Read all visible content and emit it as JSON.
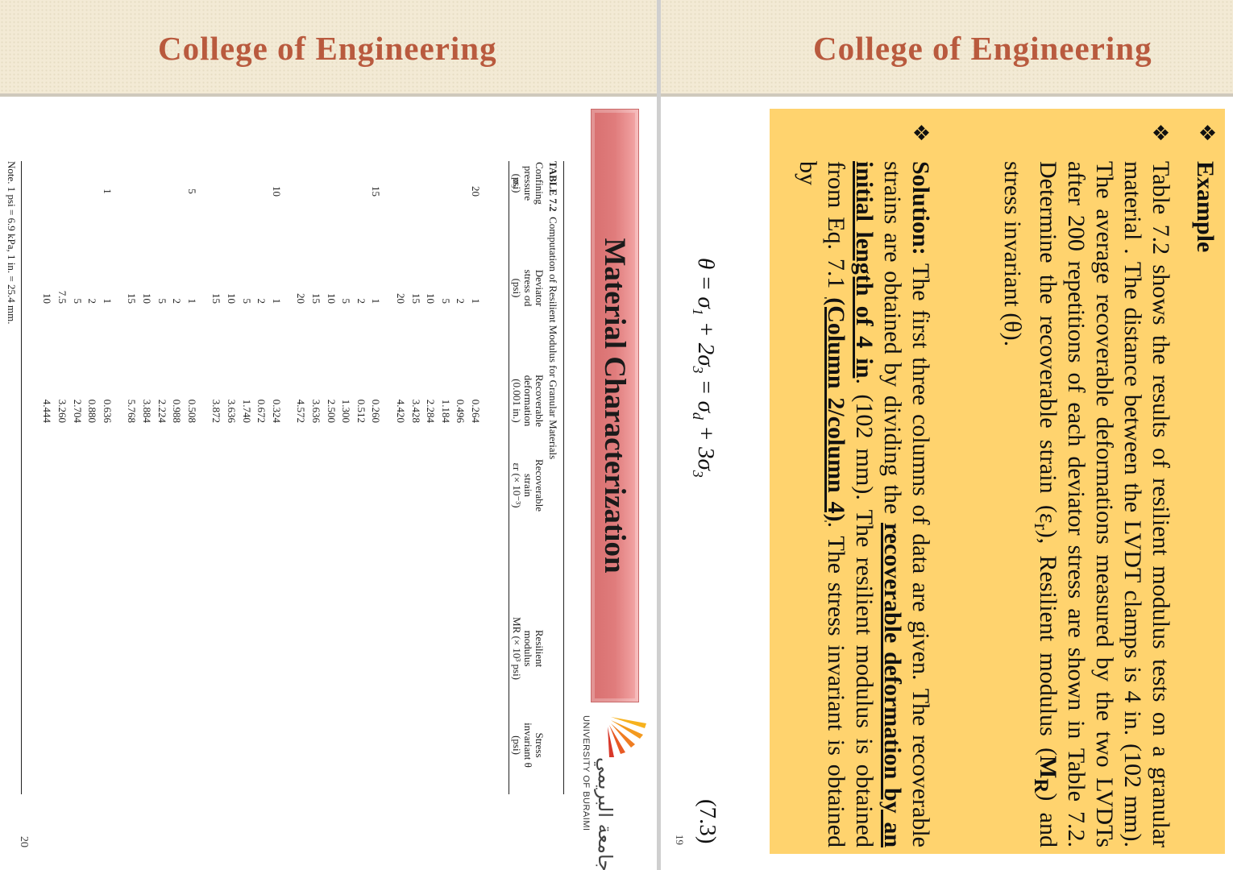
{
  "left_slide": {
    "header": {
      "title": "College of Engineering"
    },
    "banner": "Material Characterization",
    "logo": {
      "arabic": "جامعة البريمي",
      "english": "UNIVERSITY OF BURAIMI"
    },
    "table": {
      "caption_label": "TABLE 7.2",
      "caption": "Computation of Resilient Modulus for Granular Materials",
      "headers": [
        [
          "Confining",
          "pressure σ₃",
          "(psi)"
        ],
        [
          "Deviator",
          "stress σd",
          "(psi)"
        ],
        [
          "Recoverable",
          "deformation",
          "(0.001 in.)"
        ],
        [
          "Recoverable",
          "strain",
          "εr (× 10⁻³)"
        ],
        [
          "Resilient",
          "modulus",
          "MR (× 10³ psi)"
        ],
        [
          "Stress",
          "invariant θ",
          "(psi)"
        ]
      ],
      "groups": [
        {
          "confining": "20",
          "rows": [
            [
              "1",
              "0.264"
            ],
            [
              "2",
              "0.496"
            ],
            [
              "5",
              "1.184"
            ],
            [
              "10",
              "2.284"
            ],
            [
              "15",
              "3.428"
            ],
            [
              "20",
              "4.420"
            ]
          ]
        },
        {
          "confining": "15",
          "rows": [
            [
              "1",
              "0.260"
            ],
            [
              "2",
              "0.512"
            ],
            [
              "5",
              "1.300"
            ],
            [
              "10",
              "2.500"
            ],
            [
              "15",
              "3.636"
            ],
            [
              "20",
              "4.572"
            ]
          ]
        },
        {
          "confining": "10",
          "rows": [
            [
              "1",
              "0.324"
            ],
            [
              "2",
              "0.672"
            ],
            [
              "5",
              "1.740"
            ],
            [
              "10",
              "3.636"
            ],
            [
              "15",
              "3.872"
            ]
          ]
        },
        {
          "confining": "5",
          "rows": [
            [
              "1",
              "0.508"
            ],
            [
              "2",
              "0.988"
            ],
            [
              "5",
              "2.224"
            ],
            [
              "10",
              "3.884"
            ],
            [
              "15",
              "5.768"
            ]
          ]
        },
        {
          "confining": "1",
          "rows": [
            [
              "1",
              "0.636"
            ],
            [
              "2",
              "0.880"
            ],
            [
              "5",
              "2.704"
            ],
            [
              "7.5",
              "3.260"
            ],
            [
              "10",
              "4.444"
            ]
          ]
        }
      ],
      "note": "Note. 1 psi = 6.9 kPa, 1 in. = 25.4 mm."
    },
    "page_number": "20"
  },
  "right_slide": {
    "header": {
      "title": "College of Engineering"
    },
    "example": {
      "bullet": "❖",
      "heading": "Example"
    },
    "problem": {
      "bullet": "❖",
      "parts": [
        "Table 7.2 shows the results of resilient modulus tests on a granular material . The distance between the LVDT clamps is 4 in. (102 mm). The average recoverable deformations measured by the two LVDTs after 200 repetitions of each deviator stress are shown in Table 7.2. Determine the recoverable strain (ε",
        "r",
        "), Resilient modulus (",
        "M",
        "R",
        ") and stress invariant (θ)."
      ]
    },
    "solution": {
      "bullet": "❖",
      "parts": [
        "Solution:",
        "The first three columns of data are given. The recoverable strains are obtained by dividing the",
        "recoverable deformation by an initial length of 4 in",
        ". (102 mm). The resilient modulus is obtained from Eq. 7.1",
        "(Column 2/column 4)",
        ". The stress invariant is obtained by"
      ]
    },
    "equation": {
      "parts": [
        "θ = σ",
        "1",
        " + 2σ",
        "3",
        " = σ",
        "d",
        " + 3σ",
        "3"
      ],
      "number": "(7.3)"
    },
    "page_number": "19"
  }
}
